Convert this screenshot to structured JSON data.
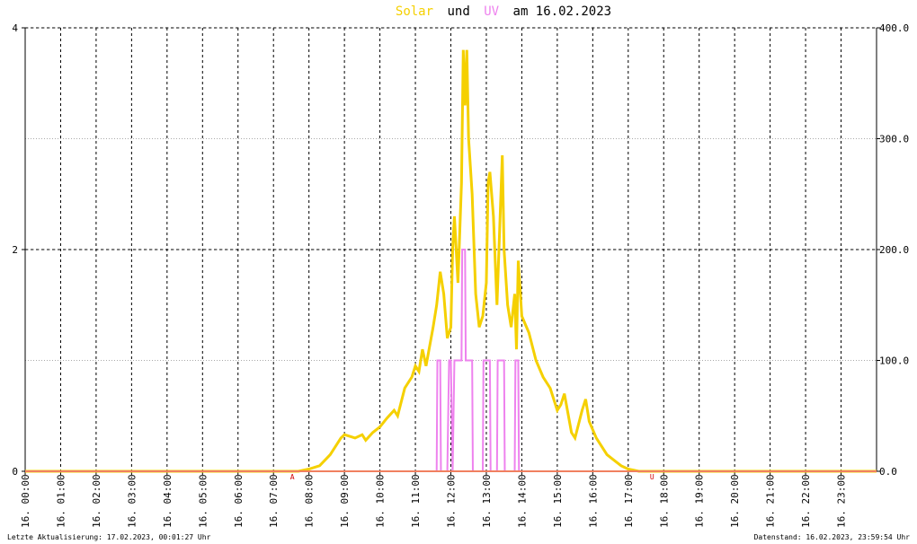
{
  "chart_data": {
    "type": "line",
    "title_join": "und",
    "title_suffix": "am 16.02.2023",
    "xlim": [
      0,
      24
    ],
    "xticks": [
      {
        "value": 0,
        "label": "16. 00:00"
      },
      {
        "value": 1,
        "label": "16. 01:00"
      },
      {
        "value": 2,
        "label": "16. 02:00"
      },
      {
        "value": 3,
        "label": "16. 03:00"
      },
      {
        "value": 4,
        "label": "16. 04:00"
      },
      {
        "value": 5,
        "label": "16. 05:00"
      },
      {
        "value": 6,
        "label": "16. 06:00"
      },
      {
        "value": 7,
        "label": "16. 07:00"
      },
      {
        "value": 8,
        "label": "16. 08:00"
      },
      {
        "value": 9,
        "label": "16. 09:00"
      },
      {
        "value": 10,
        "label": "16. 10:00"
      },
      {
        "value": 11,
        "label": "16. 11:00"
      },
      {
        "value": 12,
        "label": "16. 12:00"
      },
      {
        "value": 13,
        "label": "16. 13:00"
      },
      {
        "value": 14,
        "label": "16. 14:00"
      },
      {
        "value": 15,
        "label": "16. 15:00"
      },
      {
        "value": 16,
        "label": "16. 16:00"
      },
      {
        "value": 17,
        "label": "16. 17:00"
      },
      {
        "value": 18,
        "label": "16. 18:00"
      },
      {
        "value": 19,
        "label": "16. 19:00"
      },
      {
        "value": 20,
        "label": "16. 20:00"
      },
      {
        "value": 21,
        "label": "16. 21:00"
      },
      {
        "value": 22,
        "label": "16. 22:00"
      },
      {
        "value": 23,
        "label": "16. 23:00"
      }
    ],
    "ylim": [
      0,
      4
    ],
    "yticks": [
      0,
      2,
      4
    ],
    "y2lim": [
      0,
      400
    ],
    "y2ticks": [
      {
        "value": 0,
        "label": "0.0"
      },
      {
        "value": 100,
        "label": "100.0"
      },
      {
        "value": 200,
        "label": "200.0"
      },
      {
        "value": 300,
        "label": "300.0"
      },
      {
        "value": 400,
        "label": "400.0"
      }
    ],
    "grid": true,
    "series": [
      {
        "name": "Solar",
        "color": "#f5d000",
        "axis": "y2",
        "x": [
          0,
          7.7,
          8.0,
          8.3,
          8.6,
          8.9,
          9.0,
          9.3,
          9.5,
          9.6,
          9.8,
          10.0,
          10.2,
          10.4,
          10.5,
          10.7,
          10.9,
          11.0,
          11.1,
          11.2,
          11.3,
          11.5,
          11.6,
          11.7,
          11.8,
          11.9,
          12.0,
          12.05,
          12.1,
          12.2,
          12.3,
          12.35,
          12.4,
          12.45,
          12.5,
          12.6,
          12.7,
          12.8,
          12.9,
          13.0,
          13.05,
          13.1,
          13.2,
          13.3,
          13.4,
          13.45,
          13.5,
          13.6,
          13.7,
          13.8,
          13.85,
          13.9,
          14.0,
          14.2,
          14.4,
          14.6,
          14.8,
          15.0,
          15.1,
          15.2,
          15.4,
          15.5,
          15.7,
          15.8,
          15.9,
          16.1,
          16.4,
          16.6,
          16.8,
          17.0,
          17.3,
          24
        ],
        "values": [
          0,
          0,
          2,
          5,
          15,
          30,
          33,
          30,
          33,
          28,
          35,
          40,
          48,
          55,
          50,
          75,
          85,
          95,
          90,
          110,
          95,
          130,
          150,
          180,
          160,
          120,
          130,
          200,
          230,
          170,
          260,
          380,
          330,
          380,
          300,
          250,
          160,
          130,
          140,
          170,
          260,
          270,
          230,
          150,
          240,
          285,
          200,
          150,
          130,
          160,
          110,
          190,
          140,
          125,
          100,
          85,
          75,
          55,
          60,
          70,
          35,
          30,
          55,
          65,
          45,
          30,
          15,
          10,
          5,
          2,
          0,
          0
        ]
      },
      {
        "name": "UV",
        "color": "#ee82ee",
        "x": [
          0,
          11.6,
          11.62,
          11.7,
          11.72,
          11.9,
          11.95,
          12.0,
          12.05,
          12.1,
          12.3,
          12.32,
          12.4,
          12.42,
          12.6,
          12.62,
          12.9,
          12.92,
          13.1,
          13.12,
          13.3,
          13.32,
          13.5,
          13.52,
          13.8,
          13.82,
          13.9,
          13.92,
          24
        ],
        "values": [
          0,
          0,
          1,
          1,
          0,
          0,
          1,
          1,
          0,
          1,
          1,
          2,
          2,
          1,
          1,
          0,
          0,
          1,
          1,
          0,
          0,
          1,
          1,
          0,
          0,
          1,
          1,
          0,
          0
        ]
      }
    ],
    "annotations": [
      {
        "x": 7.53,
        "text": "A"
      },
      {
        "x": 17.67,
        "text": "U"
      }
    ]
  },
  "footer": {
    "left": "Letzte Aktualisierung: 17.02.2023, 00:01:27 Uhr",
    "right": "Datenstand: 16.02.2023, 23:59:54 Uhr"
  }
}
